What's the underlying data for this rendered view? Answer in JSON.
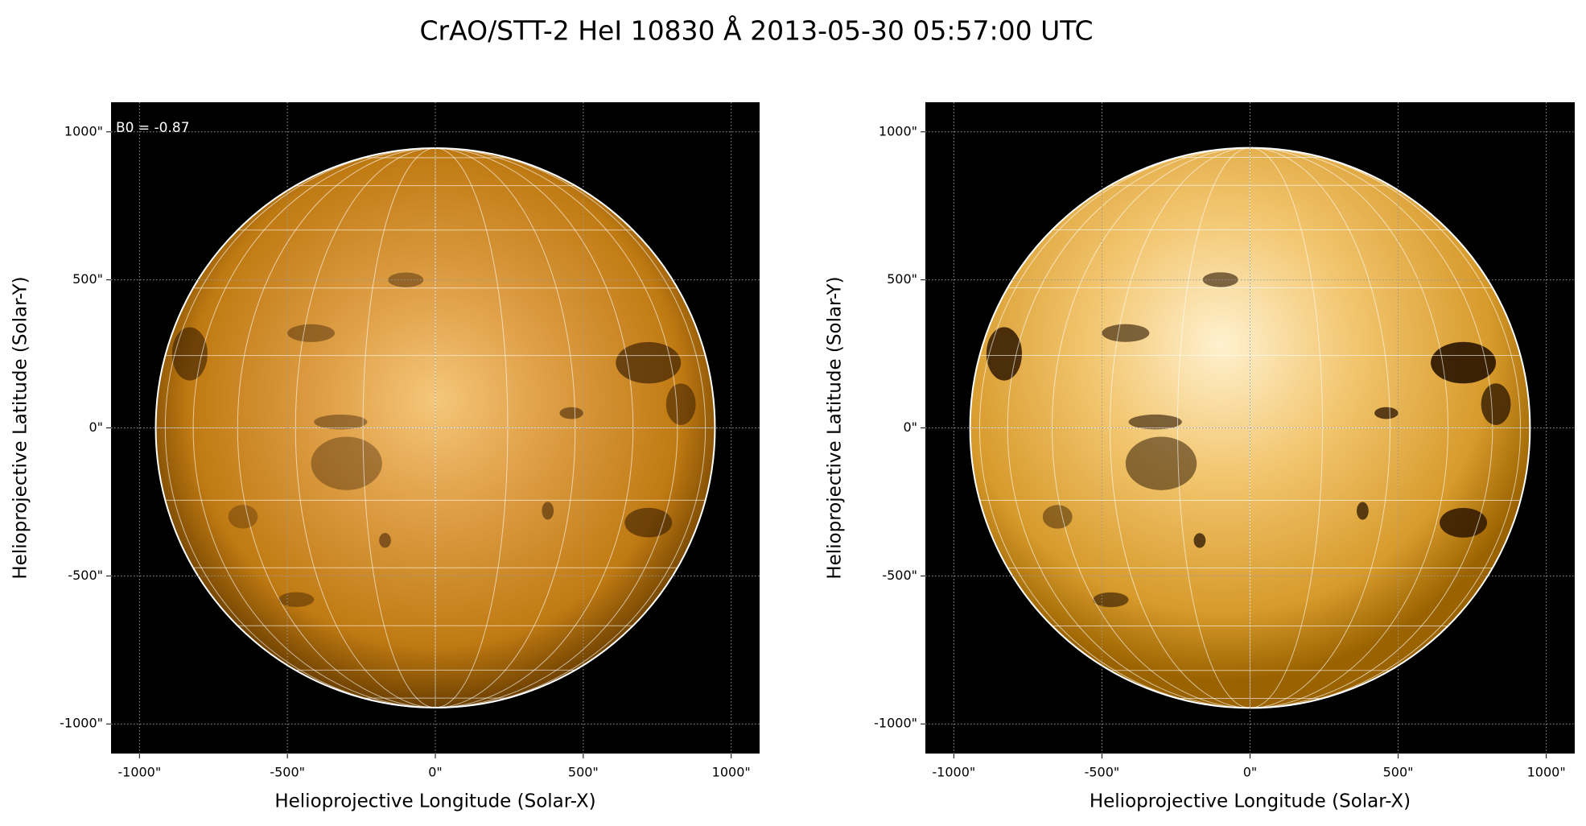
{
  "title": "CrAO/STT-2 HeI 10830 Å 2013-05-30 05:57:00 UTC",
  "chart_data": [
    {
      "type": "image",
      "xlabel": "Helioprojective Longitude (Solar-X)",
      "ylabel": "Helioprojective Latitude (Solar-Y)",
      "annotation": "B0 = -0.87",
      "xlim": [
        -1096,
        1096
      ],
      "ylim": [
        -1100,
        1100
      ],
      "grid": true,
      "xticks": [
        {
          "value": -1000,
          "label": "-1000\""
        },
        {
          "value": -500,
          "label": "-500\""
        },
        {
          "value": 0,
          "label": "0\""
        },
        {
          "value": 500,
          "label": "500\""
        },
        {
          "value": 1000,
          "label": "1000\""
        }
      ],
      "yticks": [
        {
          "value": -1000,
          "label": "-1000\""
        },
        {
          "value": -500,
          "label": "-500\""
        },
        {
          "value": 0,
          "label": "0\""
        },
        {
          "value": 500,
          "label": "500\""
        },
        {
          "value": 1000,
          "label": "1000\""
        }
      ]
    },
    {
      "type": "image",
      "xlabel": "Helioprojective Longitude (Solar-X)",
      "ylabel": "Helioprojective Latitude (Solar-Y)",
      "xlim": [
        -1096,
        1096
      ],
      "ylim": [
        -1100,
        1100
      ],
      "grid": true,
      "xticks": [
        {
          "value": -1000,
          "label": "-1000\""
        },
        {
          "value": -500,
          "label": "-500\""
        },
        {
          "value": 0,
          "label": "0\""
        },
        {
          "value": 500,
          "label": "500\""
        },
        {
          "value": 1000,
          "label": "1000\""
        }
      ],
      "yticks": [
        {
          "value": -1000,
          "label": "-1000\""
        },
        {
          "value": -500,
          "label": "-500\""
        },
        {
          "value": 0,
          "label": "0\""
        },
        {
          "value": 500,
          "label": "500\""
        },
        {
          "value": 1000,
          "label": "1000\""
        }
      ]
    }
  ]
}
